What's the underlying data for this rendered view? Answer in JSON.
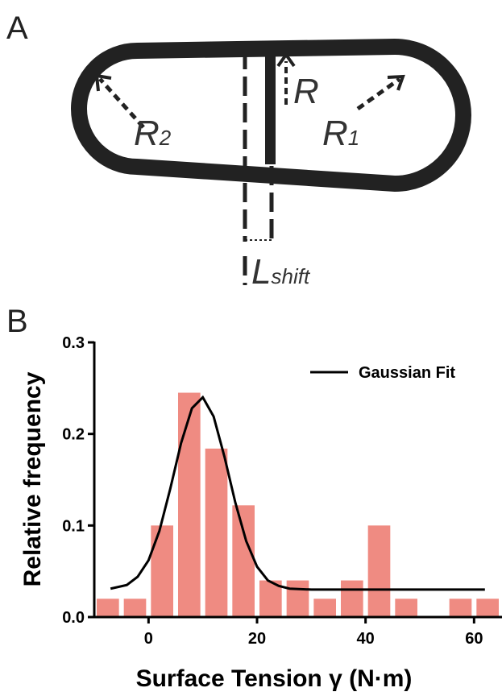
{
  "panel_a": {
    "label": "A",
    "r": "R",
    "r1": {
      "main": "R",
      "sub": "1"
    },
    "r2": {
      "main": "R",
      "sub": "2"
    },
    "l_shift": {
      "main": "L",
      "sub": "shift"
    }
  },
  "panel_b_label": "B",
  "chart_data": {
    "type": "histogram",
    "xlabel": "Surface Tension γ (N·m)",
    "ylabel": "Relative frequency",
    "bins": [
      -10,
      -5,
      0,
      5,
      10,
      15,
      20,
      25,
      30,
      35,
      40,
      45,
      50,
      55,
      60,
      65
    ],
    "values": [
      0.02,
      0.02,
      0.1,
      0.245,
      0.184,
      0.122,
      0.04,
      0.04,
      0.02,
      0.04,
      0.1,
      0.02,
      0,
      0.02,
      0.02
    ],
    "color": "#ef8b82",
    "series": [
      {
        "name": "Gaussian Fit",
        "color": "#000000",
        "x": [
          -7,
          -4,
          -2,
          0,
          2,
          4,
          6,
          8,
          10,
          12,
          14,
          16,
          18,
          20,
          22,
          24,
          26,
          30,
          40,
          50,
          62
        ],
        "values": [
          0.031,
          0.035,
          0.044,
          0.062,
          0.094,
          0.14,
          0.19,
          0.228,
          0.24,
          0.219,
          0.175,
          0.125,
          0.083,
          0.055,
          0.04,
          0.034,
          0.031,
          0.03,
          0.03,
          0.03,
          0.03
        ]
      }
    ],
    "xlim": [
      -10,
      65
    ],
    "ylim": [
      0,
      0.3
    ],
    "xticks": [
      0,
      20,
      40,
      60
    ],
    "yticks": [
      {
        "value": 0,
        "label": "0.0"
      },
      0.1,
      0.2,
      0.3
    ],
    "legend": "upper right"
  }
}
